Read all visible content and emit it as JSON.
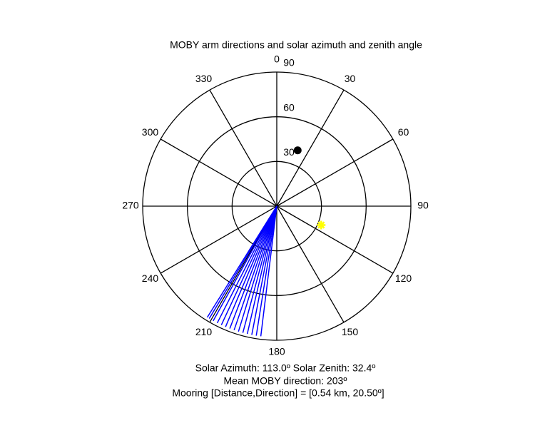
{
  "chart_data": {
    "type": "polar",
    "title": "MOBY arm directions and solar azimuth and zenith angle",
    "rlim": [
      0,
      90
    ],
    "rticks": [
      30,
      60,
      90
    ],
    "thetaticks": [
      0,
      30,
      60,
      90,
      120,
      150,
      180,
      210,
      240,
      270,
      300,
      330
    ],
    "series": [
      {
        "kind": "lines",
        "color": "#0000ff",
        "theta": [
          187,
          189,
          191,
          193,
          195,
          197,
          199,
          201,
          203,
          205,
          207,
          209,
          211,
          212
        ],
        "r": [
          88,
          88,
          88,
          88,
          88,
          88,
          88,
          88,
          88,
          88,
          88,
          88,
          88,
          88
        ]
      },
      {
        "kind": "dot",
        "color": "#000000",
        "theta": [
          20.5
        ],
        "r": [
          40
        ]
      },
      {
        "kind": "star",
        "color": "#ffff00",
        "theta": [
          113.0
        ],
        "r": [
          32.4
        ]
      }
    ],
    "annotations": [
      "Solar Azimuth: 113.0º   Solar Zenith: 32.4º",
      "Mean MOBY direction: 203º",
      "Mooring [Distance,Direction] = [0.54 km, 20.50º]"
    ]
  }
}
